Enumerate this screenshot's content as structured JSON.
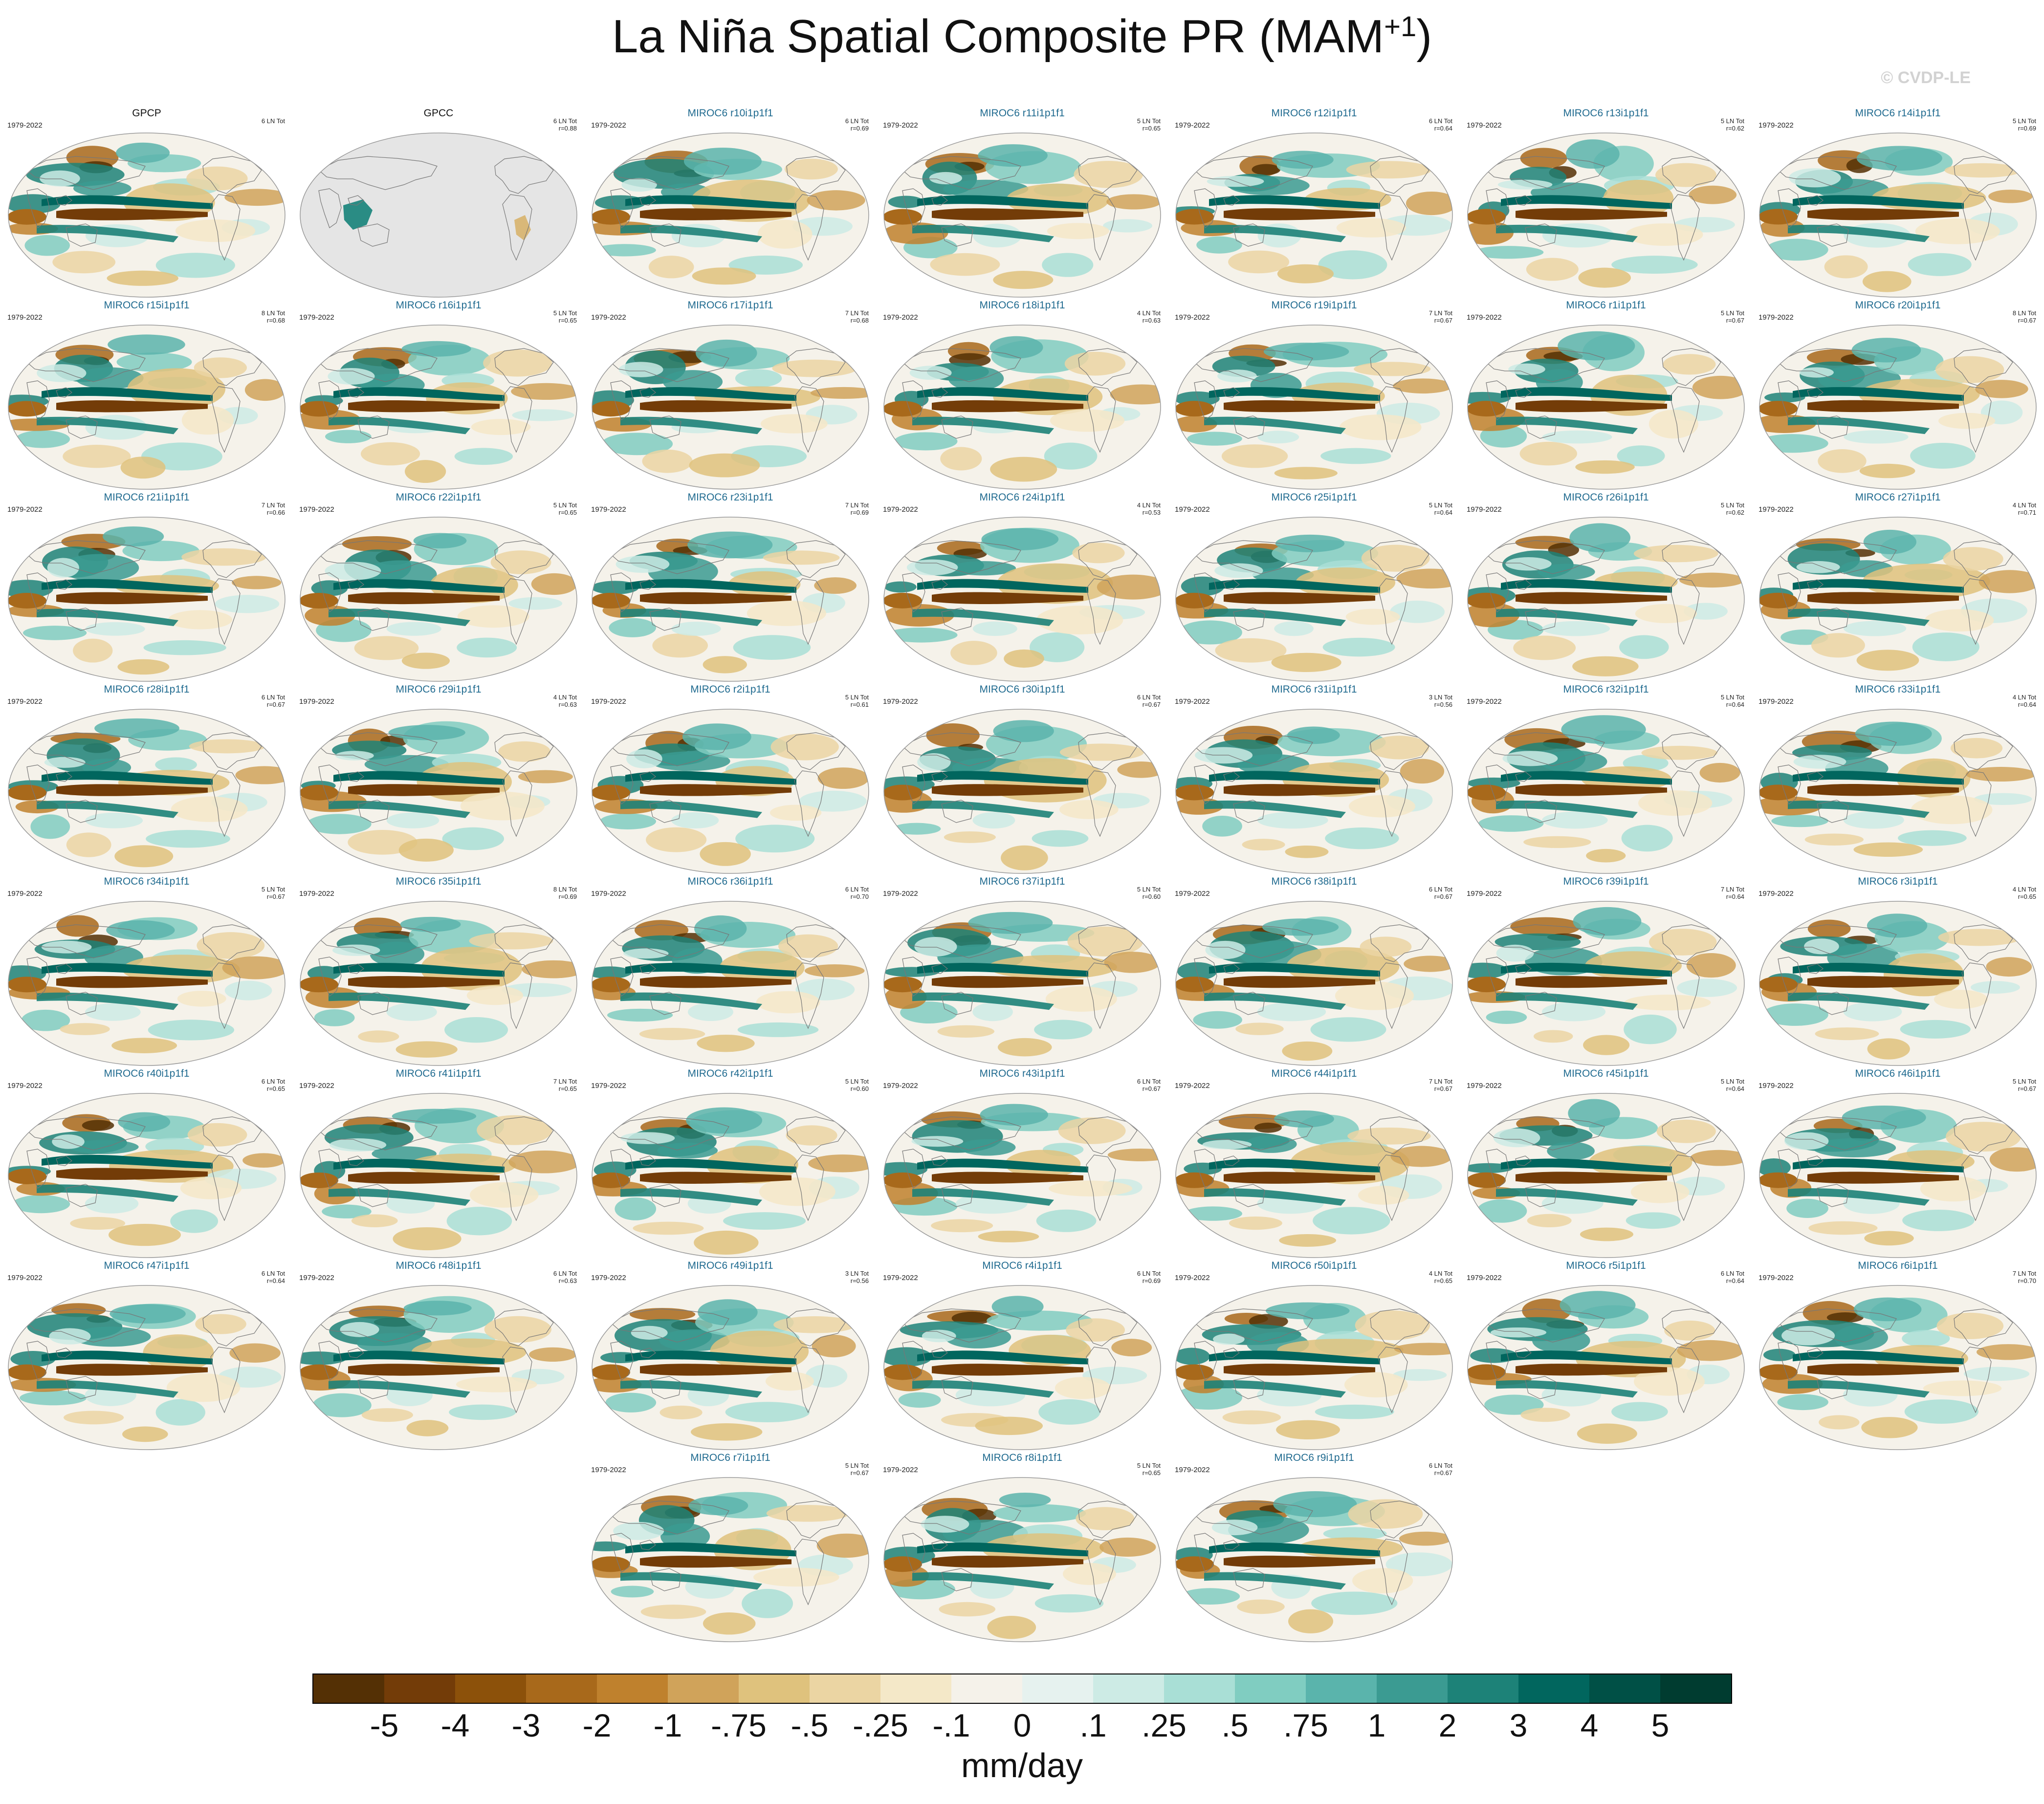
{
  "title_main": "La Niña Spatial Composite PR (MAM",
  "title_sup": "+1",
  "title_end": ")",
  "watermark": "© CVDP-LE",
  "colors": {
    "model_label": "#1f6a8f",
    "land_missing": "#e5e5e5",
    "coast": "#777777"
  },
  "chart_data": {
    "type": "heatmap",
    "projection": "robinson-like global map",
    "variable": "precipitation composite anomaly",
    "units": "mm/day",
    "panels": [
      {
        "name": "GPCP",
        "years": "1979-2022",
        "count": "6 LN Tot",
        "r": "",
        "kind": "obs",
        "missing": false
      },
      {
        "name": "GPCC",
        "years": "",
        "count": "6 LN Tot",
        "r": "r=0.88",
        "kind": "obs",
        "missing": true
      },
      {
        "name": "MIROC6 r10i1p1f1",
        "years": "1979-2022",
        "count": "6 LN Tot",
        "r": "r=0.69",
        "kind": "model",
        "missing": false
      },
      {
        "name": "MIROC6 r11i1p1f1",
        "years": "1979-2022",
        "count": "5 LN Tot",
        "r": "r=0.65",
        "kind": "model",
        "missing": false
      },
      {
        "name": "MIROC6 r12i1p1f1",
        "years": "1979-2022",
        "count": "6 LN Tot",
        "r": "r=0.64",
        "kind": "model",
        "missing": false
      },
      {
        "name": "MIROC6 r13i1p1f1",
        "years": "1979-2022",
        "count": "5 LN Tot",
        "r": "r=0.62",
        "kind": "model",
        "missing": false
      },
      {
        "name": "MIROC6 r14i1p1f1",
        "years": "1979-2022",
        "count": "5 LN Tot",
        "r": "r=0.69",
        "kind": "model",
        "missing": false
      },
      {
        "name": "MIROC6 r15i1p1f1",
        "years": "1979-2022",
        "count": "8 LN Tot",
        "r": "r=0.68",
        "kind": "model",
        "missing": false
      },
      {
        "name": "MIROC6 r16i1p1f1",
        "years": "1979-2022",
        "count": "5 LN Tot",
        "r": "r=0.65",
        "kind": "model",
        "missing": false
      },
      {
        "name": "MIROC6 r17i1p1f1",
        "years": "1979-2022",
        "count": "7 LN Tot",
        "r": "r=0.68",
        "kind": "model",
        "missing": false
      },
      {
        "name": "MIROC6 r18i1p1f1",
        "years": "1979-2022",
        "count": "4 LN Tot",
        "r": "r=0.63",
        "kind": "model",
        "missing": false
      },
      {
        "name": "MIROC6 r19i1p1f1",
        "years": "1979-2022",
        "count": "7 LN Tot",
        "r": "r=0.67",
        "kind": "model",
        "missing": false
      },
      {
        "name": "MIROC6 r1i1p1f1",
        "years": "1979-2022",
        "count": "5 LN Tot",
        "r": "r=0.67",
        "kind": "model",
        "missing": false
      },
      {
        "name": "MIROC6 r20i1p1f1",
        "years": "1979-2022",
        "count": "8 LN Tot",
        "r": "r=0.67",
        "kind": "model",
        "missing": false
      },
      {
        "name": "MIROC6 r21i1p1f1",
        "years": "1979-2022",
        "count": "7 LN Tot",
        "r": "r=0.66",
        "kind": "model",
        "missing": false
      },
      {
        "name": "MIROC6 r22i1p1f1",
        "years": "1979-2022",
        "count": "5 LN Tot",
        "r": "r=0.65",
        "kind": "model",
        "missing": false
      },
      {
        "name": "MIROC6 r23i1p1f1",
        "years": "1979-2022",
        "count": "7 LN Tot",
        "r": "r=0.69",
        "kind": "model",
        "missing": false
      },
      {
        "name": "MIROC6 r24i1p1f1",
        "years": "1979-2022",
        "count": "4 LN Tot",
        "r": "r=0.53",
        "kind": "model",
        "missing": false
      },
      {
        "name": "MIROC6 r25i1p1f1",
        "years": "1979-2022",
        "count": "5 LN Tot",
        "r": "r=0.64",
        "kind": "model",
        "missing": false
      },
      {
        "name": "MIROC6 r26i1p1f1",
        "years": "1979-2022",
        "count": "5 LN Tot",
        "r": "r=0.62",
        "kind": "model",
        "missing": false
      },
      {
        "name": "MIROC6 r27i1p1f1",
        "years": "1979-2022",
        "count": "4 LN Tot",
        "r": "r=0.71",
        "kind": "model",
        "missing": false
      },
      {
        "name": "MIROC6 r28i1p1f1",
        "years": "1979-2022",
        "count": "6 LN Tot",
        "r": "r=0.67",
        "kind": "model",
        "missing": false
      },
      {
        "name": "MIROC6 r29i1p1f1",
        "years": "1979-2022",
        "count": "4 LN Tot",
        "r": "r=0.63",
        "kind": "model",
        "missing": false
      },
      {
        "name": "MIROC6 r2i1p1f1",
        "years": "1979-2022",
        "count": "5 LN Tot",
        "r": "r=0.61",
        "kind": "model",
        "missing": false
      },
      {
        "name": "MIROC6 r30i1p1f1",
        "years": "1979-2022",
        "count": "6 LN Tot",
        "r": "r=0.67",
        "kind": "model",
        "missing": false
      },
      {
        "name": "MIROC6 r31i1p1f1",
        "years": "1979-2022",
        "count": "3 LN Tot",
        "r": "r=0.56",
        "kind": "model",
        "missing": false
      },
      {
        "name": "MIROC6 r32i1p1f1",
        "years": "1979-2022",
        "count": "5 LN Tot",
        "r": "r=0.64",
        "kind": "model",
        "missing": false
      },
      {
        "name": "MIROC6 r33i1p1f1",
        "years": "1979-2022",
        "count": "4 LN Tot",
        "r": "r=0.64",
        "kind": "model",
        "missing": false
      },
      {
        "name": "MIROC6 r34i1p1f1",
        "years": "1979-2022",
        "count": "5 LN Tot",
        "r": "r=0.67",
        "kind": "model",
        "missing": false
      },
      {
        "name": "MIROC6 r35i1p1f1",
        "years": "1979-2022",
        "count": "8 LN Tot",
        "r": "r=0.69",
        "kind": "model",
        "missing": false
      },
      {
        "name": "MIROC6 r36i1p1f1",
        "years": "1979-2022",
        "count": "6 LN Tot",
        "r": "r=0.70",
        "kind": "model",
        "missing": false
      },
      {
        "name": "MIROC6 r37i1p1f1",
        "years": "1979-2022",
        "count": "5 LN Tot",
        "r": "r=0.60",
        "kind": "model",
        "missing": false
      },
      {
        "name": "MIROC6 r38i1p1f1",
        "years": "1979-2022",
        "count": "6 LN Tot",
        "r": "r=0.67",
        "kind": "model",
        "missing": false
      },
      {
        "name": "MIROC6 r39i1p1f1",
        "years": "1979-2022",
        "count": "7 LN Tot",
        "r": "r=0.64",
        "kind": "model",
        "missing": false
      },
      {
        "name": "MIROC6 r3i1p1f1",
        "years": "1979-2022",
        "count": "4 LN Tot",
        "r": "r=0.65",
        "kind": "model",
        "missing": false
      },
      {
        "name": "MIROC6 r40i1p1f1",
        "years": "1979-2022",
        "count": "6 LN Tot",
        "r": "r=0.65",
        "kind": "model",
        "missing": false
      },
      {
        "name": "MIROC6 r41i1p1f1",
        "years": "1979-2022",
        "count": "7 LN Tot",
        "r": "r=0.65",
        "kind": "model",
        "missing": false
      },
      {
        "name": "MIROC6 r42i1p1f1",
        "years": "1979-2022",
        "count": "5 LN Tot",
        "r": "r=0.60",
        "kind": "model",
        "missing": false
      },
      {
        "name": "MIROC6 r43i1p1f1",
        "years": "1979-2022",
        "count": "6 LN Tot",
        "r": "r=0.67",
        "kind": "model",
        "missing": false
      },
      {
        "name": "MIROC6 r44i1p1f1",
        "years": "1979-2022",
        "count": "7 LN Tot",
        "r": "r=0.67",
        "kind": "model",
        "missing": false
      },
      {
        "name": "MIROC6 r45i1p1f1",
        "years": "1979-2022",
        "count": "5 LN Tot",
        "r": "r=0.64",
        "kind": "model",
        "missing": false
      },
      {
        "name": "MIROC6 r46i1p1f1",
        "years": "1979-2022",
        "count": "5 LN Tot",
        "r": "r=0.67",
        "kind": "model",
        "missing": false
      },
      {
        "name": "MIROC6 r47i1p1f1",
        "years": "1979-2022",
        "count": "6 LN Tot",
        "r": "r=0.64",
        "kind": "model",
        "missing": false
      },
      {
        "name": "MIROC6 r48i1p1f1",
        "years": "1979-2022",
        "count": "6 LN Tot",
        "r": "r=0.63",
        "kind": "model",
        "missing": false
      },
      {
        "name": "MIROC6 r49i1p1f1",
        "years": "1979-2022",
        "count": "3 LN Tot",
        "r": "r=0.56",
        "kind": "model",
        "missing": false
      },
      {
        "name": "MIROC6 r4i1p1f1",
        "years": "1979-2022",
        "count": "6 LN Tot",
        "r": "r=0.69",
        "kind": "model",
        "missing": false
      },
      {
        "name": "MIROC6 r50i1p1f1",
        "years": "1979-2022",
        "count": "4 LN Tot",
        "r": "r=0.65",
        "kind": "model",
        "missing": false
      },
      {
        "name": "MIROC6 r5i1p1f1",
        "years": "1979-2022",
        "count": "6 LN Tot",
        "r": "r=0.64",
        "kind": "model",
        "missing": false
      },
      {
        "name": "MIROC6 r6i1p1f1",
        "years": "1979-2022",
        "count": "7 LN Tot",
        "r": "r=0.70",
        "kind": "model",
        "missing": false
      },
      {
        "name": "MIROC6 r7i1p1f1",
        "years": "1979-2022",
        "count": "5 LN Tot",
        "r": "r=0.67",
        "kind": "model",
        "missing": false
      },
      {
        "name": "MIROC6 r8i1p1f1",
        "years": "1979-2022",
        "count": "5 LN Tot",
        "r": "r=0.65",
        "kind": "model",
        "missing": false
      },
      {
        "name": "MIROC6 r9i1p1f1",
        "years": "1979-2022",
        "count": "6 LN Tot",
        "r": "r=0.67",
        "kind": "model",
        "missing": false
      }
    ],
    "colorbar": {
      "label": "mm/day",
      "ticks": [
        "-5",
        "-4",
        "-3",
        "-2",
        "-1",
        "-.75",
        "-.5",
        "-.25",
        "-.1",
        "0",
        ".1",
        ".25",
        ".5",
        ".75",
        "1",
        "2",
        "3",
        "4",
        "5"
      ],
      "colors": [
        "#543005",
        "#733c08",
        "#8c510a",
        "#a8691b",
        "#bf812d",
        "#d0a35a",
        "#dfc27d",
        "#ebd5a3",
        "#f4e8c8",
        "#f5f2ea",
        "#e6f2ef",
        "#cdebe5",
        "#a9dfd6",
        "#80cdc1",
        "#5ab4ac",
        "#3b9b92",
        "#1d8278",
        "#01665e",
        "#005046",
        "#003c30"
      ]
    }
  }
}
